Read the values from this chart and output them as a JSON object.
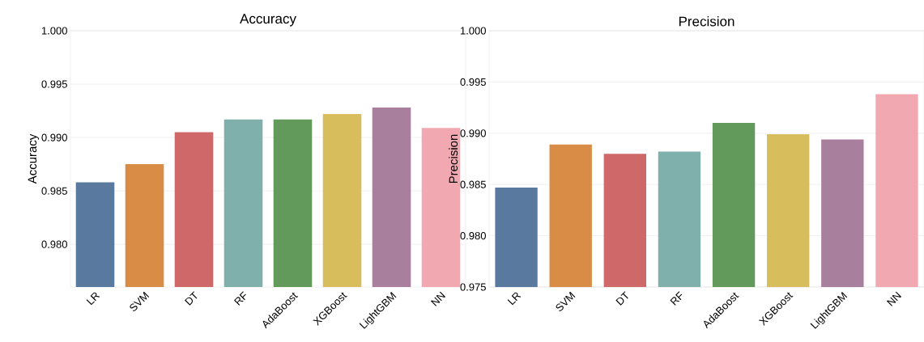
{
  "chart_data": [
    {
      "type": "bar",
      "title": "Accuracy",
      "ylabel": "Accuracy",
      "categories": [
        "LR",
        "SVM",
        "DT",
        "RF",
        "AdaBoost",
        "XGBoost",
        "LightGBM",
        "NN"
      ],
      "values": [
        0.9858,
        0.9875,
        0.9905,
        0.9917,
        0.9917,
        0.9922,
        0.9928,
        0.9909
      ],
      "colors": [
        "#59799e",
        "#d98c46",
        "#cf6868",
        "#7fb0ab",
        "#619a5a",
        "#d8bd5d",
        "#a87f9c",
        "#f1a8b0"
      ],
      "ylim": [
        0.976,
        1.0
      ],
      "yticks": [
        {
          "value": 0.98,
          "label": "0.980"
        },
        {
          "value": 0.985,
          "label": "0.985"
        },
        {
          "value": 0.99,
          "label": "0.990"
        },
        {
          "value": 0.995,
          "label": "0.995"
        },
        {
          "value": 1.0,
          "label": "1.000"
        }
      ],
      "grid": "y"
    },
    {
      "type": "bar",
      "title": "Precision",
      "ylabel": "Precision",
      "categories": [
        "LR",
        "SVM",
        "DT",
        "RF",
        "AdaBoost",
        "XGBoost",
        "LightGBM",
        "NN"
      ],
      "values": [
        0.9847,
        0.9889,
        0.988,
        0.9882,
        0.991,
        0.9899,
        0.9894,
        0.9938
      ],
      "colors": [
        "#59799e",
        "#d98c46",
        "#cf6868",
        "#7fb0ab",
        "#619a5a",
        "#d8bd5d",
        "#a87f9c",
        "#f1a8b0"
      ],
      "ylim": [
        0.975,
        1.0
      ],
      "yticks": [
        {
          "value": 0.975,
          "label": "0.975"
        },
        {
          "value": 0.98,
          "label": "0.980"
        },
        {
          "value": 0.985,
          "label": "0.985"
        },
        {
          "value": 0.99,
          "label": "0.990"
        },
        {
          "value": 0.995,
          "label": "0.995"
        },
        {
          "value": 1.0,
          "label": "1.000"
        }
      ],
      "grid": "y"
    }
  ]
}
